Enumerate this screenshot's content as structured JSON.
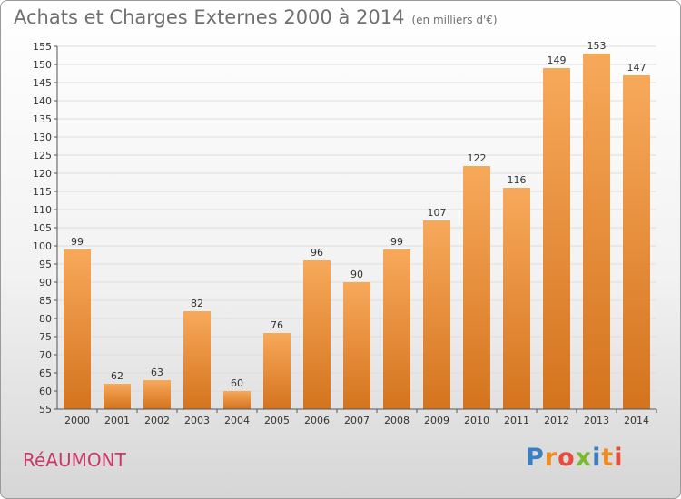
{
  "header": {
    "title": "Achats et Charges Externes 2000 à 2014",
    "unit": "(en milliers d'€)"
  },
  "footer": {
    "commune": "RéAUMONT",
    "logo_letters": [
      "P",
      "r",
      "o",
      "x",
      "i",
      "t",
      "i"
    ],
    "logo_colors": [
      "#3a7fc1",
      "#f08a1c",
      "#e84c3d",
      "#7cb82f",
      "#3a7fc1",
      "#f08a1c",
      "#e84c3d"
    ]
  },
  "colors": {
    "bar_light": "#f7a95a",
    "bar_dark": "#d4731e",
    "gridline": "#dddddd"
  },
  "chart_data": {
    "type": "bar",
    "title": "Achats et Charges Externes 2000 à 2014",
    "subtitle": "(en milliers d'€)",
    "xlabel": "",
    "ylabel": "",
    "categories": [
      "2000",
      "2001",
      "2002",
      "2003",
      "2004",
      "2005",
      "2006",
      "2007",
      "2008",
      "2009",
      "2010",
      "2011",
      "2012",
      "2013",
      "2014"
    ],
    "values": [
      99,
      62,
      63,
      82,
      60,
      76,
      96,
      90,
      99,
      107,
      122,
      116,
      149,
      153,
      147
    ],
    "ylim": [
      55,
      155
    ],
    "ytick_step": 5,
    "grid": true,
    "legend": "none"
  }
}
